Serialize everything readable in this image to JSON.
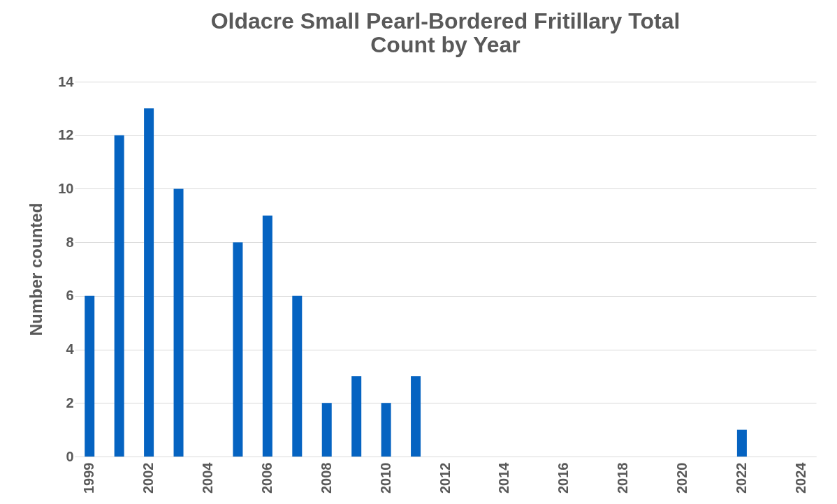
{
  "chart_data": {
    "type": "bar",
    "title": "Oldacre Small Pearl-Bordered Fritillary Total Count by Year",
    "ylabel": "Number counted",
    "categories": [
      "1999",
      null,
      "2002",
      null,
      "2004",
      null,
      "2006",
      null,
      "2008",
      null,
      "2010",
      null,
      "2012",
      null,
      "2014",
      null,
      "2016",
      null,
      "2018",
      null,
      "2020",
      null,
      "2022",
      null,
      "2024"
    ],
    "values": [
      6,
      12,
      13,
      10,
      0,
      8,
      9,
      6,
      2,
      3,
      2,
      3,
      0,
      0,
      0,
      0,
      0,
      0,
      0,
      0,
      0,
      0,
      1,
      0,
      0
    ],
    "color": "#0563c1",
    "ylim": [
      0,
      14
    ],
    "yticks": [
      0,
      2,
      4,
      6,
      8,
      10,
      12,
      14
    ],
    "grid": "y"
  }
}
